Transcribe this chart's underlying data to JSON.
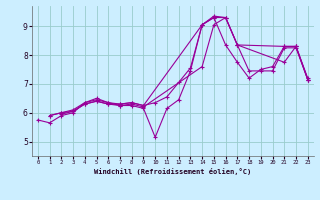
{
  "xlabel": "Windchill (Refroidissement éolien,°C)",
  "bg_color": "#cceeff",
  "line_color": "#990099",
  "grid_color": "#99cccc",
  "xlim": [
    -0.5,
    23.5
  ],
  "ylim": [
    4.5,
    9.7
  ],
  "xticks": [
    0,
    1,
    2,
    3,
    4,
    5,
    6,
    7,
    8,
    9,
    10,
    11,
    12,
    13,
    14,
    15,
    16,
    17,
    18,
    19,
    20,
    21,
    22,
    23
  ],
  "yticks": [
    5,
    6,
    7,
    8,
    9
  ],
  "series": [
    {
      "x": [
        0,
        1,
        2,
        3,
        4,
        5,
        6,
        7,
        8,
        9,
        10,
        11,
        12,
        13,
        14,
        15,
        16,
        17,
        18,
        19,
        20,
        21,
        22,
        23
      ],
      "y": [
        5.75,
        5.65,
        5.9,
        6.0,
        6.35,
        6.5,
        6.35,
        6.25,
        6.25,
        6.15,
        5.15,
        6.15,
        6.45,
        7.45,
        9.05,
        9.35,
        9.3,
        8.35,
        7.45,
        7.45,
        7.45,
        8.25,
        8.25,
        7.15
      ]
    },
    {
      "x": [
        1,
        2,
        3,
        4,
        5,
        6,
        7,
        8,
        9,
        14,
        15,
        16,
        17,
        21,
        22,
        23
      ],
      "y": [
        5.9,
        6.0,
        6.1,
        6.35,
        6.45,
        6.35,
        6.3,
        6.35,
        6.25,
        9.05,
        9.3,
        9.3,
        8.35,
        8.3,
        8.3,
        7.15
      ]
    },
    {
      "x": [
        2,
        3,
        4,
        5,
        6,
        7,
        8,
        9,
        14,
        15,
        16,
        17,
        21,
        22,
        23
      ],
      "y": [
        5.95,
        6.05,
        6.3,
        6.4,
        6.3,
        6.25,
        6.3,
        6.2,
        7.6,
        9.05,
        9.3,
        8.35,
        7.75,
        8.3,
        7.2
      ]
    },
    {
      "x": [
        1,
        2,
        3,
        4,
        5,
        6,
        7,
        8,
        9,
        10,
        11,
        12,
        13,
        14,
        15,
        16,
        17,
        18,
        19,
        20,
        21,
        22,
        23
      ],
      "y": [
        5.9,
        6.0,
        6.05,
        6.3,
        6.4,
        6.3,
        6.3,
        6.35,
        6.25,
        6.35,
        6.55,
        7.05,
        7.55,
        9.05,
        9.3,
        8.35,
        7.75,
        7.2,
        7.5,
        7.6,
        8.3,
        8.3,
        7.15
      ]
    }
  ]
}
